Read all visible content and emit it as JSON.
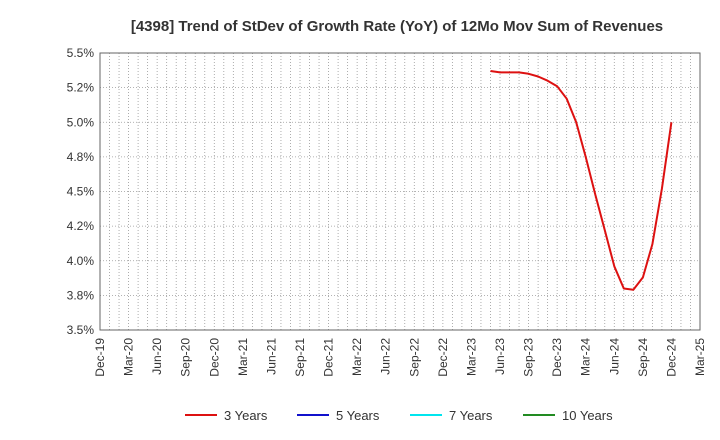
{
  "chart_data": {
    "type": "line",
    "title": "[4398]  Trend of StDev of Growth Rate (YoY) of 12Mo Mov Sum of Revenues",
    "xlabel": "",
    "ylabel": "",
    "ylim": [
      3.5,
      5.5
    ],
    "y_ticks": [
      "3.5%",
      "3.8%",
      "4.0%",
      "4.2%",
      "4.5%",
      "4.8%",
      "5.0%",
      "5.2%",
      "5.5%"
    ],
    "y_tick_values": [
      3.5,
      3.75,
      4.0,
      4.25,
      4.5,
      4.75,
      5.0,
      5.25,
      5.5
    ],
    "x_tick_labels": [
      "Dec-19",
      "Mar-20",
      "Jun-20",
      "Sep-20",
      "Dec-20",
      "Mar-21",
      "Jun-21",
      "Sep-21",
      "Dec-21",
      "Mar-22",
      "Jun-22",
      "Sep-22",
      "Dec-22",
      "Mar-23",
      "Jun-23",
      "Sep-23",
      "Dec-23",
      "Mar-24",
      "Jun-24",
      "Sep-24",
      "Dec-24",
      "Mar-25"
    ],
    "grid": true,
    "legend_position": "bottom",
    "series": [
      {
        "name": "3 Years",
        "color": "#dd1111",
        "points": [
          [
            "May-23",
            5.37
          ],
          [
            "Jun-23",
            5.36
          ],
          [
            "Jul-23",
            5.36
          ],
          [
            "Aug-23",
            5.36
          ],
          [
            "Sep-23",
            5.35
          ],
          [
            "Oct-23",
            5.33
          ],
          [
            "Nov-23",
            5.3
          ],
          [
            "Dec-23",
            5.26
          ],
          [
            "Jan-24",
            5.17
          ],
          [
            "Feb-24",
            5.0
          ],
          [
            "Mar-24",
            4.75
          ],
          [
            "Apr-24",
            4.48
          ],
          [
            "May-24",
            4.22
          ],
          [
            "Jun-24",
            3.96
          ],
          [
            "Jul-24",
            3.8
          ],
          [
            "Aug-24",
            3.79
          ],
          [
            "Sep-24",
            3.88
          ],
          [
            "Oct-24",
            4.12
          ],
          [
            "Nov-24",
            4.52
          ],
          [
            "Dec-24",
            5.0
          ]
        ]
      },
      {
        "name": "5 Years",
        "color": "#1111cc",
        "points": []
      },
      {
        "name": "7 Years",
        "color": "#00e5ee",
        "points": []
      },
      {
        "name": "10 Years",
        "color": "#228b22",
        "points": []
      }
    ]
  }
}
